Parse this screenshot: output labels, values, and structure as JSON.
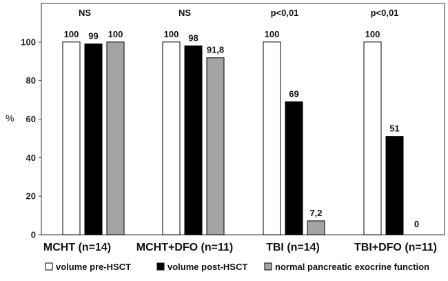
{
  "chart_data": {
    "type": "bar",
    "title": "",
    "xlabel": "",
    "ylabel": "%",
    "ylim": [
      0,
      120
    ],
    "yticks": [
      0,
      20,
      40,
      60,
      80,
      100
    ],
    "grid": false,
    "legend_position": "bottom",
    "categories": [
      "MCHT (n=14)",
      "MCHT+DFO (n=11)",
      "TBI (n=14)",
      "TBI+DFO (n=11)"
    ],
    "significance": [
      "NS",
      "NS",
      "p<0,01",
      "p<0,01"
    ],
    "series": [
      {
        "name": "volume pre-HSCT",
        "color": "#ffffff",
        "values": [
          100,
          100,
          100,
          100
        ],
        "labels": [
          "100",
          "100",
          "100",
          "100"
        ]
      },
      {
        "name": "volume post-HSCT",
        "color": "#000000",
        "values": [
          99,
          98,
          69,
          51
        ],
        "labels": [
          "99",
          "98",
          "69",
          "51"
        ]
      },
      {
        "name": "normal pancreatic exocrine function",
        "color": "#a6a3a3",
        "values": [
          100,
          91.8,
          7.2,
          0
        ],
        "labels": [
          "100",
          "91,8",
          "7,2",
          "0"
        ]
      }
    ]
  }
}
